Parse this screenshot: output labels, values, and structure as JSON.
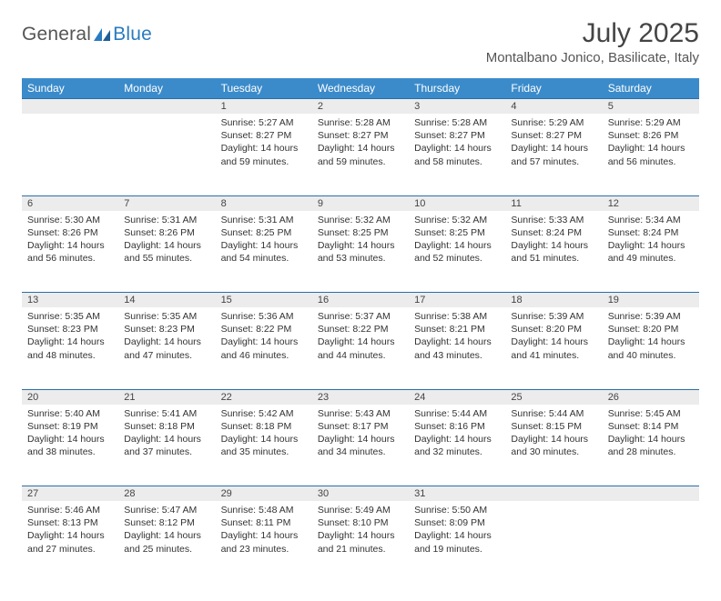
{
  "brand": {
    "word1": "General",
    "word2": "Blue"
  },
  "title": "July 2025",
  "location": "Montalbano Jonico, Basilicate, Italy",
  "colors": {
    "header_bg": "#3b8bca",
    "header_text": "#ffffff",
    "daynum_bg": "#ececec",
    "daynum_border": "#2a6fa8",
    "text": "#333333",
    "brand_blue": "#2a7bc0"
  },
  "dayHeaders": [
    "Sunday",
    "Monday",
    "Tuesday",
    "Wednesday",
    "Thursday",
    "Friday",
    "Saturday"
  ],
  "weeks": [
    [
      null,
      null,
      {
        "n": "1",
        "sunrise": "5:27 AM",
        "sunset": "8:27 PM",
        "daylight": "14 hours and 59 minutes."
      },
      {
        "n": "2",
        "sunrise": "5:28 AM",
        "sunset": "8:27 PM",
        "daylight": "14 hours and 59 minutes."
      },
      {
        "n": "3",
        "sunrise": "5:28 AM",
        "sunset": "8:27 PM",
        "daylight": "14 hours and 58 minutes."
      },
      {
        "n": "4",
        "sunrise": "5:29 AM",
        "sunset": "8:27 PM",
        "daylight": "14 hours and 57 minutes."
      },
      {
        "n": "5",
        "sunrise": "5:29 AM",
        "sunset": "8:26 PM",
        "daylight": "14 hours and 56 minutes."
      }
    ],
    [
      {
        "n": "6",
        "sunrise": "5:30 AM",
        "sunset": "8:26 PM",
        "daylight": "14 hours and 56 minutes."
      },
      {
        "n": "7",
        "sunrise": "5:31 AM",
        "sunset": "8:26 PM",
        "daylight": "14 hours and 55 minutes."
      },
      {
        "n": "8",
        "sunrise": "5:31 AM",
        "sunset": "8:25 PM",
        "daylight": "14 hours and 54 minutes."
      },
      {
        "n": "9",
        "sunrise": "5:32 AM",
        "sunset": "8:25 PM",
        "daylight": "14 hours and 53 minutes."
      },
      {
        "n": "10",
        "sunrise": "5:32 AM",
        "sunset": "8:25 PM",
        "daylight": "14 hours and 52 minutes."
      },
      {
        "n": "11",
        "sunrise": "5:33 AM",
        "sunset": "8:24 PM",
        "daylight": "14 hours and 51 minutes."
      },
      {
        "n": "12",
        "sunrise": "5:34 AM",
        "sunset": "8:24 PM",
        "daylight": "14 hours and 49 minutes."
      }
    ],
    [
      {
        "n": "13",
        "sunrise": "5:35 AM",
        "sunset": "8:23 PM",
        "daylight": "14 hours and 48 minutes."
      },
      {
        "n": "14",
        "sunrise": "5:35 AM",
        "sunset": "8:23 PM",
        "daylight": "14 hours and 47 minutes."
      },
      {
        "n": "15",
        "sunrise": "5:36 AM",
        "sunset": "8:22 PM",
        "daylight": "14 hours and 46 minutes."
      },
      {
        "n": "16",
        "sunrise": "5:37 AM",
        "sunset": "8:22 PM",
        "daylight": "14 hours and 44 minutes."
      },
      {
        "n": "17",
        "sunrise": "5:38 AM",
        "sunset": "8:21 PM",
        "daylight": "14 hours and 43 minutes."
      },
      {
        "n": "18",
        "sunrise": "5:39 AM",
        "sunset": "8:20 PM",
        "daylight": "14 hours and 41 minutes."
      },
      {
        "n": "19",
        "sunrise": "5:39 AM",
        "sunset": "8:20 PM",
        "daylight": "14 hours and 40 minutes."
      }
    ],
    [
      {
        "n": "20",
        "sunrise": "5:40 AM",
        "sunset": "8:19 PM",
        "daylight": "14 hours and 38 minutes."
      },
      {
        "n": "21",
        "sunrise": "5:41 AM",
        "sunset": "8:18 PM",
        "daylight": "14 hours and 37 minutes."
      },
      {
        "n": "22",
        "sunrise": "5:42 AM",
        "sunset": "8:18 PM",
        "daylight": "14 hours and 35 minutes."
      },
      {
        "n": "23",
        "sunrise": "5:43 AM",
        "sunset": "8:17 PM",
        "daylight": "14 hours and 34 minutes."
      },
      {
        "n": "24",
        "sunrise": "5:44 AM",
        "sunset": "8:16 PM",
        "daylight": "14 hours and 32 minutes."
      },
      {
        "n": "25",
        "sunrise": "5:44 AM",
        "sunset": "8:15 PM",
        "daylight": "14 hours and 30 minutes."
      },
      {
        "n": "26",
        "sunrise": "5:45 AM",
        "sunset": "8:14 PM",
        "daylight": "14 hours and 28 minutes."
      }
    ],
    [
      {
        "n": "27",
        "sunrise": "5:46 AM",
        "sunset": "8:13 PM",
        "daylight": "14 hours and 27 minutes."
      },
      {
        "n": "28",
        "sunrise": "5:47 AM",
        "sunset": "8:12 PM",
        "daylight": "14 hours and 25 minutes."
      },
      {
        "n": "29",
        "sunrise": "5:48 AM",
        "sunset": "8:11 PM",
        "daylight": "14 hours and 23 minutes."
      },
      {
        "n": "30",
        "sunrise": "5:49 AM",
        "sunset": "8:10 PM",
        "daylight": "14 hours and 21 minutes."
      },
      {
        "n": "31",
        "sunrise": "5:50 AM",
        "sunset": "8:09 PM",
        "daylight": "14 hours and 19 minutes."
      },
      null,
      null
    ]
  ],
  "labels": {
    "sunrise": "Sunrise:",
    "sunset": "Sunset:",
    "daylight": "Daylight:"
  }
}
